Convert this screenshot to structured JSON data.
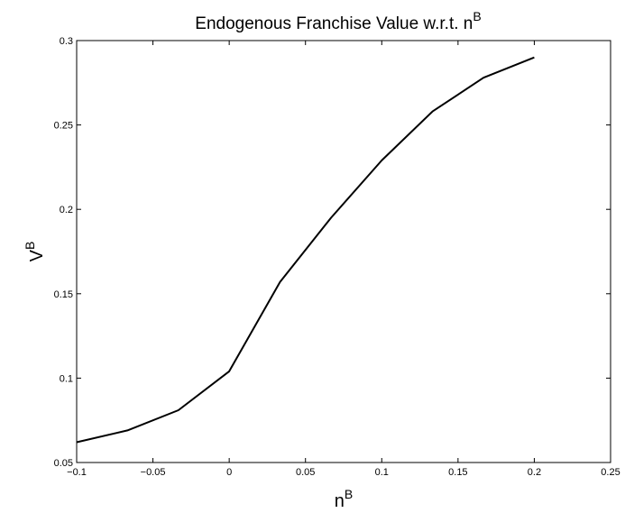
{
  "chart_data": {
    "type": "line",
    "title": "Endogenous Franchise Value w.r.t. n",
    "title_superscript": "B",
    "xlabel": "n",
    "xlabel_superscript": "B",
    "ylabel": "V",
    "ylabel_superscript": "B",
    "xlim": [
      -0.1,
      0.25
    ],
    "ylim": [
      0.05,
      0.3
    ],
    "xticks": [
      -0.1,
      -0.05,
      0,
      0.05,
      0.1,
      0.15,
      0.2,
      0.25
    ],
    "xtick_labels": [
      "−0.1",
      "−0.05",
      "0",
      "0.05",
      "0.1",
      "0.15",
      "0.2",
      "0.25"
    ],
    "yticks": [
      0.05,
      0.1,
      0.15,
      0.2,
      0.25,
      0.3
    ],
    "ytick_labels": [
      "0.05",
      "0.1",
      "0.15",
      "0.2",
      "0.25",
      "0.3"
    ],
    "grid": false,
    "line_color": "#000000",
    "series": [
      {
        "x": [
          -0.1,
          -0.0667,
          -0.0333,
          0.0,
          0.0333,
          0.0667,
          0.1,
          0.1333,
          0.1667,
          0.2
        ],
        "y": [
          0.062,
          0.069,
          0.081,
          0.104,
          0.157,
          0.195,
          0.229,
          0.258,
          0.278,
          0.29
        ]
      }
    ]
  }
}
